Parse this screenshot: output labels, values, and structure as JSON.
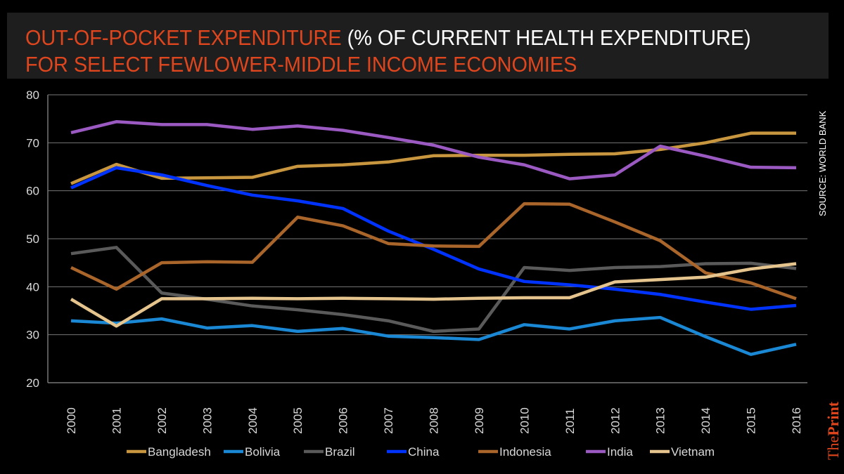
{
  "header": {
    "title_accent": "OUT-OF-POCKET EXPENDITURE",
    "title_white": " (% OF CURRENT HEALTH EXPENDITURE)",
    "subtitle": "FOR SELECT FEWLOWER-MIDDLE INCOME ECONOMIES"
  },
  "source": "SOURCE: WORLD BANK",
  "logo": {
    "the": "The",
    "print": "Print"
  },
  "colors": {
    "accent": "#e0461d",
    "background": "#000000",
    "title_box": "#1e1e1e"
  },
  "chart_data": {
    "type": "line",
    "title": "OUT-OF-POCKET EXPENDITURE (% OF CURRENT HEALTH EXPENDITURE) FOR SELECT FEWLOWER-MIDDLE INCOME ECONOMIES",
    "xlabel": "",
    "ylabel": "",
    "ylim": [
      20,
      80
    ],
    "yticks": [
      20,
      30,
      40,
      50,
      60,
      70,
      80
    ],
    "grid": true,
    "legend_position": "bottom",
    "x": [
      "2000",
      "2001",
      "2002",
      "2003",
      "2004",
      "2005",
      "2006",
      "2007",
      "2008",
      "2009",
      "2010",
      "2011",
      "2012",
      "2013",
      "2014",
      "2015",
      "2016"
    ],
    "series": [
      {
        "name": "Bangladesh",
        "color": "#c8963e",
        "values": [
          61.5,
          65.5,
          62.6,
          62.7,
          62.8,
          65.1,
          65.4,
          66.0,
          67.3,
          67.4,
          67.4,
          67.6,
          67.7,
          68.6,
          70.0,
          72.0,
          72.0
        ]
      },
      {
        "name": "Bolivia",
        "color": "#1a88d4",
        "values": [
          32.9,
          32.4,
          33.3,
          31.4,
          31.9,
          30.7,
          31.3,
          29.7,
          29.4,
          29.0,
          32.1,
          31.2,
          32.9,
          33.6,
          29.6,
          25.9,
          28.0
        ]
      },
      {
        "name": "Brazil",
        "color": "#5a5a5a",
        "values": [
          46.9,
          48.2,
          38.7,
          37.4,
          36.0,
          35.2,
          34.2,
          32.9,
          30.7,
          31.2,
          44.0,
          43.4,
          44.0,
          44.2,
          44.8,
          44.9,
          43.8
        ]
      },
      {
        "name": "China",
        "color": "#0033ff",
        "values": [
          60.6,
          64.8,
          63.3,
          61.1,
          59.1,
          57.9,
          56.3,
          51.6,
          47.8,
          43.7,
          41.1,
          40.4,
          39.5,
          38.4,
          36.8,
          35.3,
          36.1
        ]
      },
      {
        "name": "Indonesia",
        "color": "#a9652a",
        "values": [
          44.0,
          39.5,
          45.0,
          45.2,
          45.1,
          54.5,
          52.7,
          49.0,
          48.5,
          48.4,
          57.3,
          57.2,
          53.5,
          49.6,
          42.9,
          40.8,
          37.5
        ]
      },
      {
        "name": "India",
        "color": "#9b59c2",
        "values": [
          72.1,
          74.4,
          73.8,
          73.8,
          72.8,
          73.5,
          72.6,
          71.1,
          69.5,
          67.0,
          65.4,
          62.5,
          63.3,
          69.3,
          67.2,
          64.9,
          64.8
        ]
      },
      {
        "name": "Vietnam",
        "color": "#e5c48d",
        "values": [
          37.4,
          31.8,
          37.5,
          37.5,
          37.6,
          37.5,
          37.6,
          37.5,
          37.4,
          37.6,
          37.7,
          37.7,
          41.0,
          41.5,
          42.0,
          43.7,
          44.8
        ]
      }
    ]
  }
}
